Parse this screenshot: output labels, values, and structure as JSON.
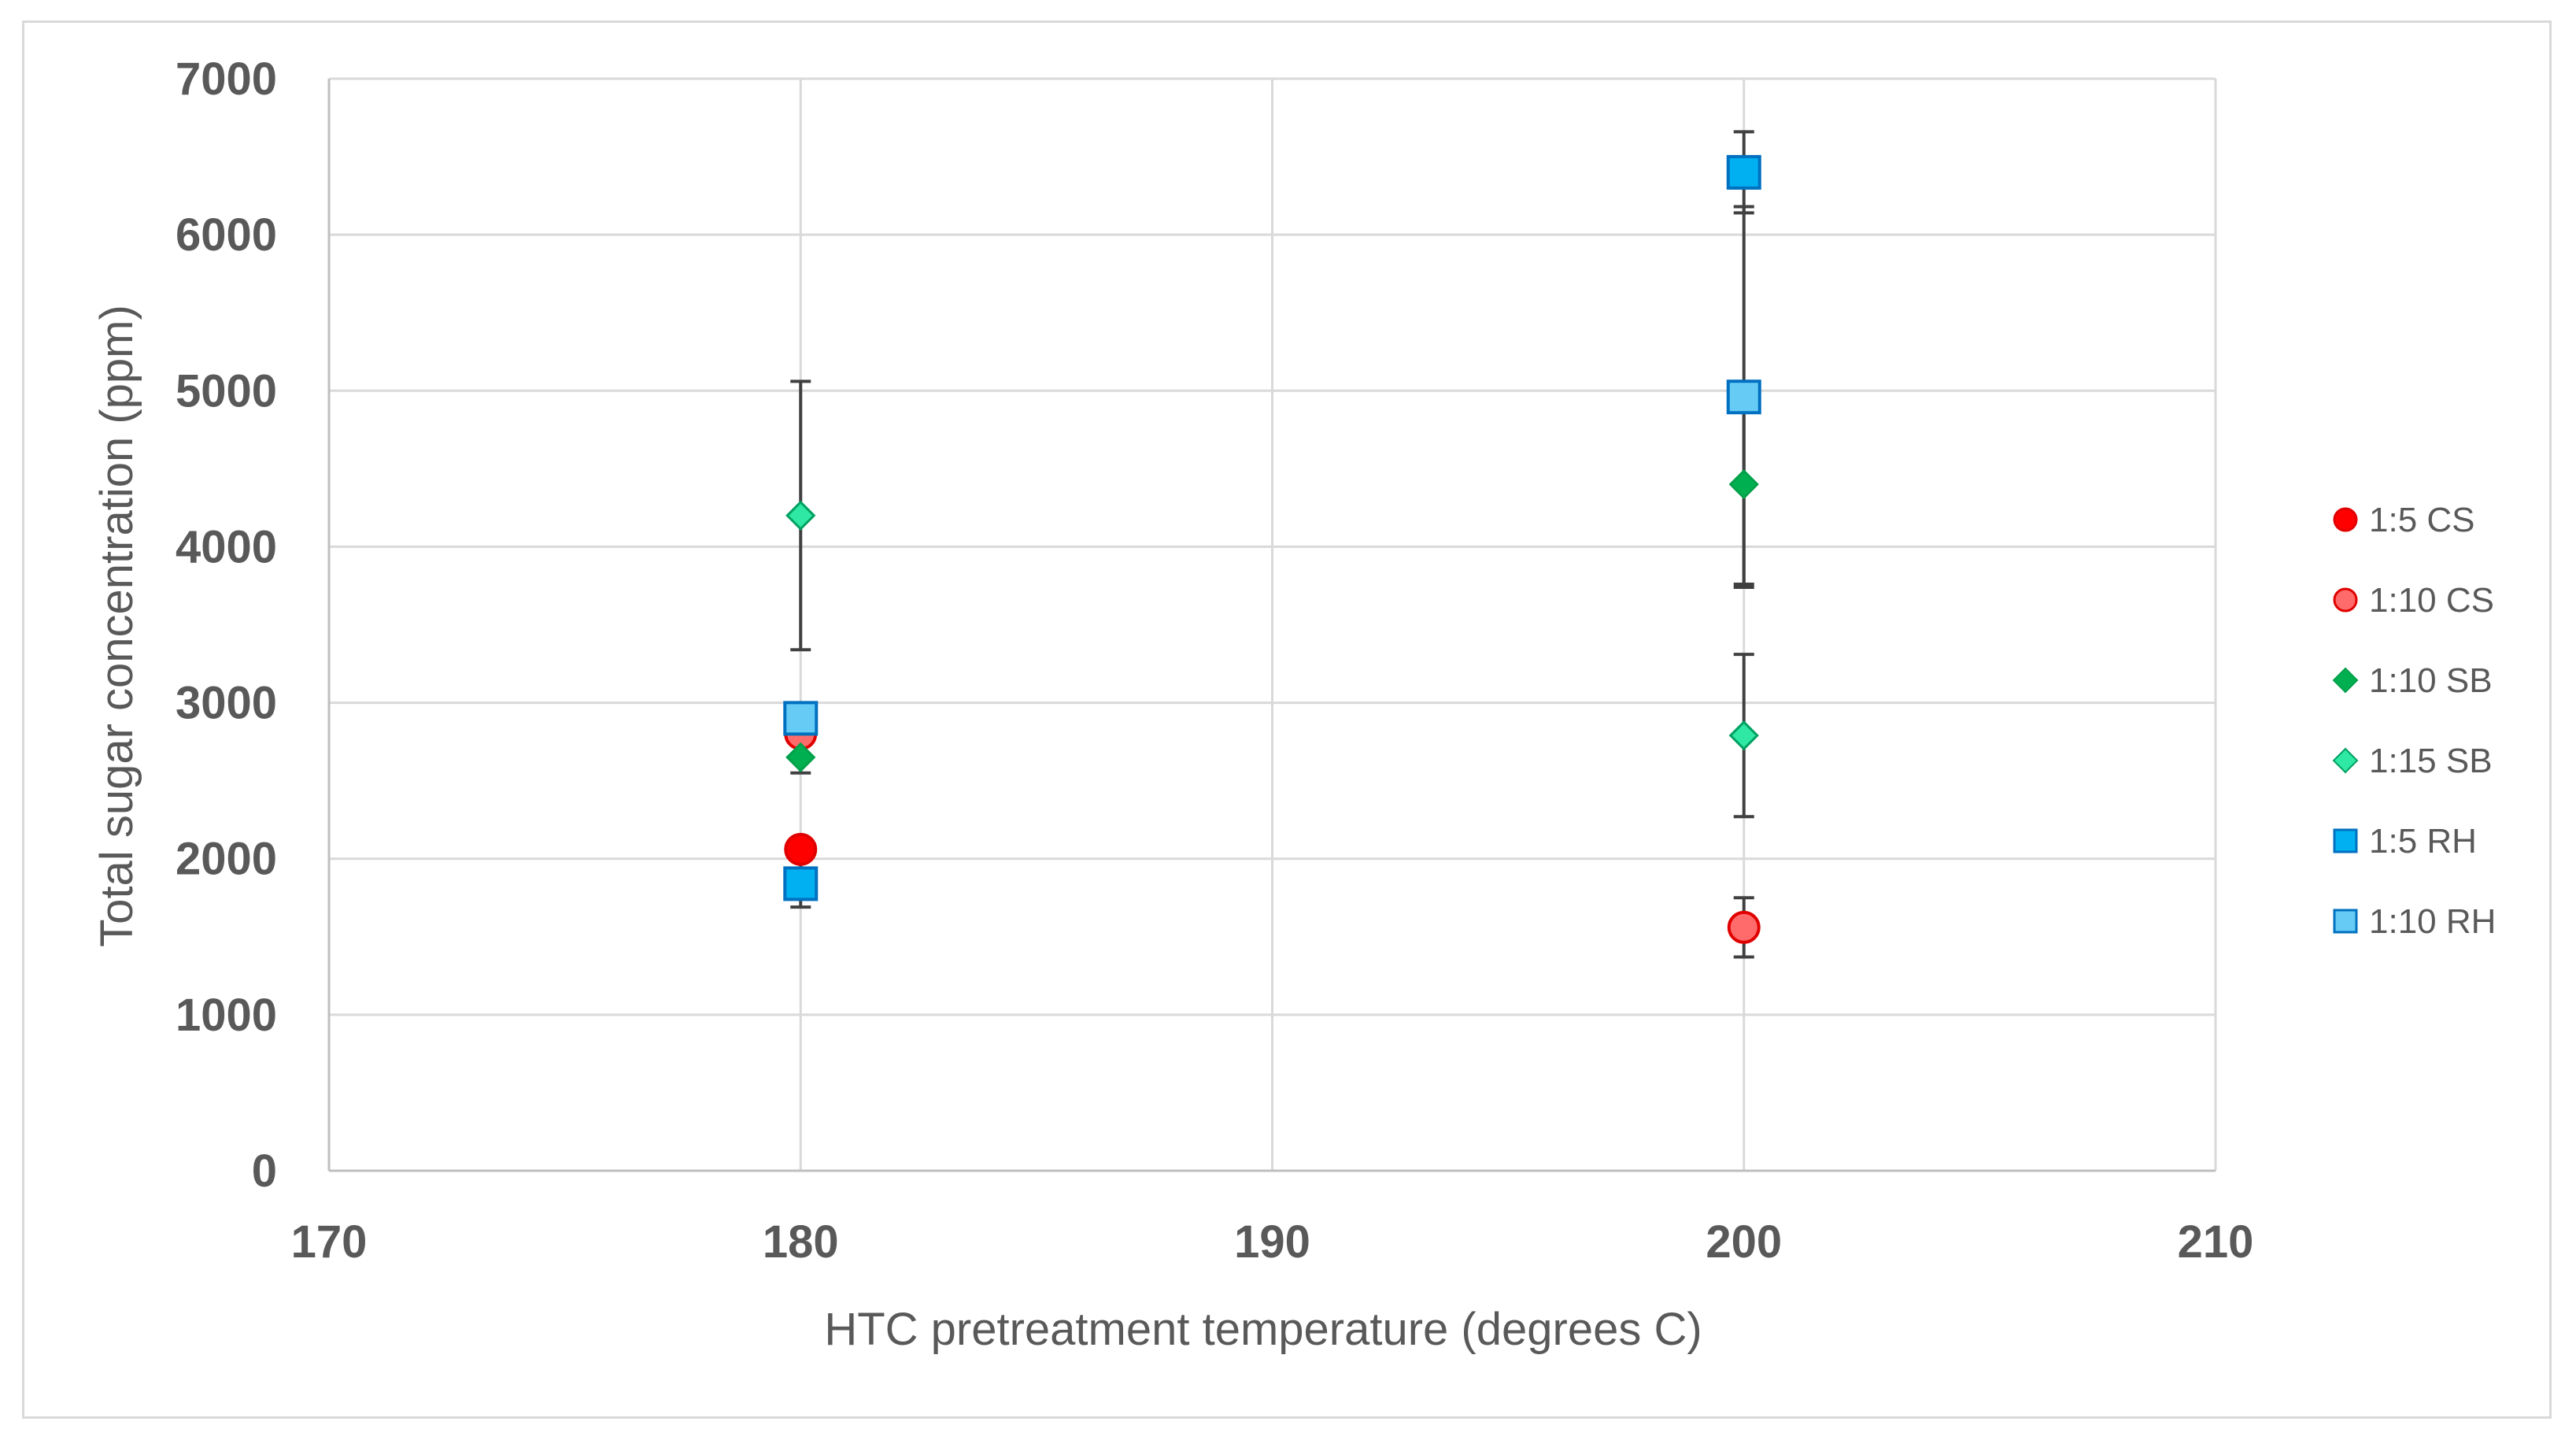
{
  "chart_data": {
    "type": "scatter",
    "xlabel": "HTC pretreatment temperature (degrees C)",
    "ylabel": "Total sugar concentration (ppm)",
    "xlim": [
      170,
      210
    ],
    "ylim": [
      0,
      7000
    ],
    "x_ticks": [
      "170",
      "180",
      "190",
      "200",
      "210"
    ],
    "y_ticks": [
      "0",
      "1000",
      "2000",
      "3000",
      "4000",
      "5000",
      "6000",
      "7000"
    ],
    "grid": true,
    "legend_position": "right",
    "series": [
      {
        "name": "1:5 CS",
        "marker": "circle",
        "fill": "#ff0000",
        "stroke": "#e00000",
        "size": "large",
        "points": [
          {
            "x": 180,
            "y": 2060,
            "err": 0
          }
        ]
      },
      {
        "name": "1:10 CS",
        "marker": "circle",
        "fill": "#ff6b6b",
        "stroke": "#e00000",
        "size": "large",
        "points": [
          {
            "x": 180,
            "y": 2800,
            "err": 0
          },
          {
            "x": 200,
            "y": 1560,
            "err": 190
          }
        ]
      },
      {
        "name": "1:10 SB",
        "marker": "diamond",
        "fill": "#00b050",
        "stroke": "#00a04a",
        "size": "small",
        "points": [
          {
            "x": 180,
            "y": 2650,
            "err": 100
          },
          {
            "x": 200,
            "y": 4400,
            "err": 640
          }
        ]
      },
      {
        "name": "1:15 SB",
        "marker": "diamond",
        "fill": "#2fe8a4",
        "stroke": "#00a060",
        "size": "small",
        "points": [
          {
            "x": 180,
            "y": 4200,
            "err": 860
          },
          {
            "x": 200,
            "y": 2790,
            "err": 520
          }
        ]
      },
      {
        "name": "1:5 RH",
        "marker": "square",
        "fill": "#00b0f0",
        "stroke": "#0070c0",
        "size": "large",
        "points": [
          {
            "x": 180,
            "y": 1840,
            "err": 150
          },
          {
            "x": 200,
            "y": 6400,
            "err": 260
          }
        ]
      },
      {
        "name": "1:10 RH",
        "marker": "square",
        "fill": "#66ccf5",
        "stroke": "#0070c0",
        "size": "large",
        "points": [
          {
            "x": 180,
            "y": 2900,
            "err": 0
          },
          {
            "x": 200,
            "y": 4960,
            "err": 1220
          }
        ]
      }
    ]
  }
}
